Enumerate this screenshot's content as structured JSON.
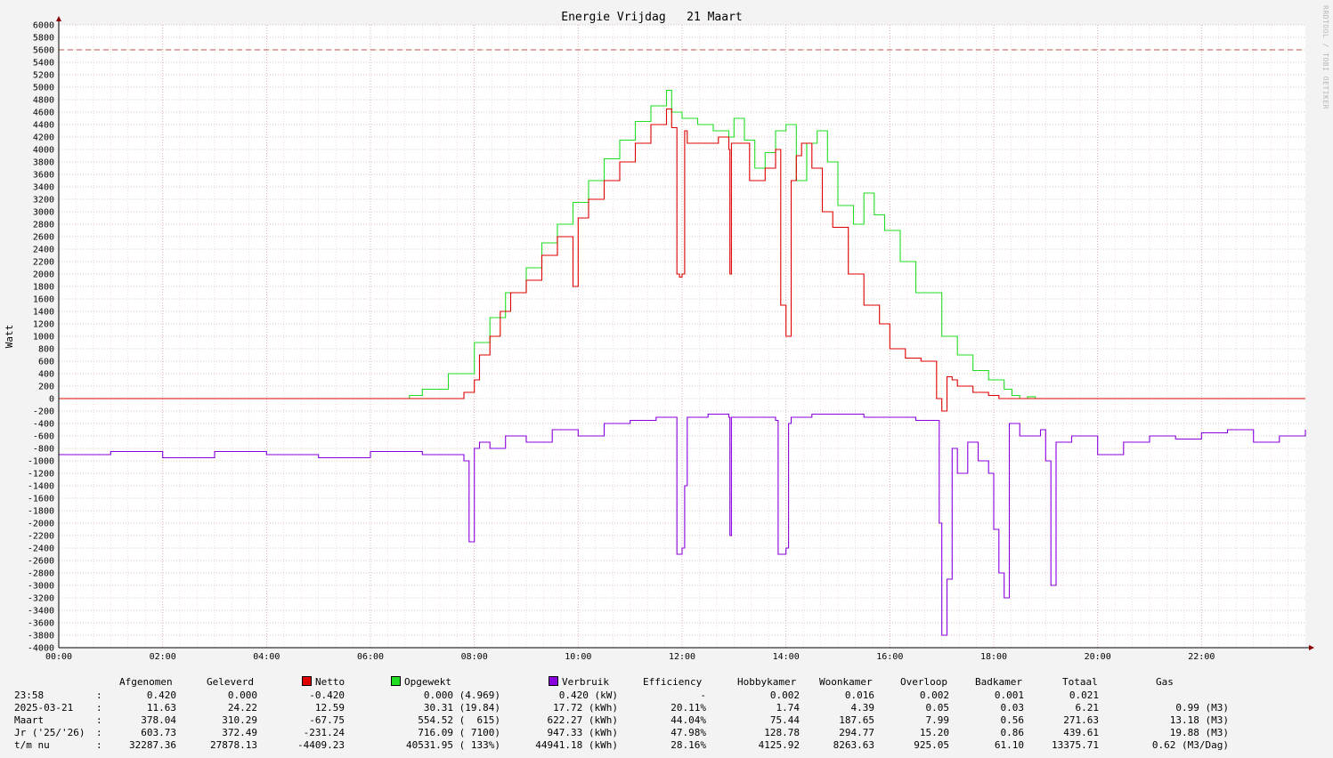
{
  "chart_data": {
    "type": "line",
    "title": "Energie Vrijdag   21 Maart",
    "ylabel": "Watt",
    "xlabel": "",
    "ylim": [
      -4000,
      6000
    ],
    "xlim_hours": [
      0,
      24
    ],
    "grid": true,
    "yticks": [
      "6000",
      "5800",
      "5600",
      "5400",
      "5200",
      "5000",
      "4800",
      "4600",
      "4400",
      "4200",
      "4000",
      "3800",
      "3600",
      "3400",
      "3200",
      "3000",
      "2800",
      "2600",
      "2400",
      "2200",
      "2000",
      "1800",
      "1600",
      "1400",
      "1200",
      "1000",
      "800",
      "600",
      "400",
      "200",
      "0",
      "-200",
      "-400",
      "-600",
      "-800",
      "-1000",
      "-1200",
      "-1400",
      "-1600",
      "-1800",
      "-2000",
      "-2200",
      "-2400",
      "-2600",
      "-2800",
      "-3000",
      "-3200",
      "-3400",
      "-3600",
      "-3800",
      "-4000"
    ],
    "xticks": [
      "00:00",
      "02:00",
      "04:00",
      "06:00",
      "08:00",
      "10:00",
      "12:00",
      "14:00",
      "16:00",
      "18:00",
      "20:00",
      "22:00"
    ],
    "limit_line": 5600,
    "series": [
      {
        "name": "Opgewekt",
        "color": "#22dd22",
        "x": [
          0,
          6.75,
          7.0,
          7.5,
          8.0,
          8.3,
          8.6,
          9.0,
          9.3,
          9.6,
          9.9,
          10.2,
          10.5,
          10.8,
          11.1,
          11.4,
          11.7,
          11.8,
          12.0,
          12.3,
          12.6,
          12.9,
          13.0,
          13.2,
          13.4,
          13.6,
          13.8,
          14.0,
          14.2,
          14.4,
          14.6,
          14.8,
          15.0,
          15.3,
          15.5,
          15.7,
          15.9,
          16.2,
          16.5,
          17.0,
          17.3,
          17.6,
          17.9,
          18.2,
          18.35,
          18.5,
          18.65,
          18.8,
          24
        ],
        "y": [
          0,
          50,
          150,
          400,
          900,
          1300,
          1700,
          2100,
          2500,
          2800,
          3150,
          3500,
          3850,
          4150,
          4450,
          4700,
          4950,
          4600,
          4500,
          4400,
          4300,
          4200,
          4500,
          4150,
          3700,
          3950,
          4300,
          4400,
          3500,
          4100,
          4300,
          3800,
          3100,
          2800,
          3300,
          2950,
          2700,
          2200,
          1700,
          1000,
          700,
          450,
          300,
          150,
          50,
          0,
          30,
          0,
          0
        ]
      },
      {
        "name": "Netto",
        "color": "#dd0000",
        "x": [
          0,
          7.5,
          7.8,
          8.0,
          8.1,
          8.3,
          8.5,
          8.7,
          9.0,
          9.3,
          9.6,
          9.9,
          10.0,
          10.2,
          10.5,
          10.8,
          11.1,
          11.4,
          11.7,
          11.8,
          11.85,
          11.9,
          11.95,
          12.0,
          12.05,
          12.1,
          12.4,
          12.7,
          12.9,
          12.92,
          12.95,
          13.0,
          13.3,
          13.6,
          13.8,
          13.9,
          14.0,
          14.1,
          14.2,
          14.3,
          14.5,
          14.7,
          14.9,
          15.2,
          15.5,
          15.8,
          16.0,
          16.3,
          16.6,
          16.9,
          17.0,
          17.1,
          17.2,
          17.3,
          17.6,
          17.9,
          18.1,
          18.3,
          24
        ],
        "y": [
          0,
          0,
          100,
          300,
          700,
          1000,
          1400,
          1700,
          1900,
          2300,
          2600,
          1800,
          2900,
          3200,
          3500,
          3800,
          4100,
          4400,
          4650,
          4350,
          4350,
          2000,
          1950,
          2000,
          4300,
          4100,
          4100,
          4200,
          4000,
          2000,
          4100,
          4100,
          3500,
          3700,
          4000,
          1500,
          1000,
          3500,
          3900,
          4100,
          3700,
          3000,
          2750,
          2000,
          1500,
          1200,
          800,
          650,
          600,
          0,
          -200,
          350,
          300,
          200,
          100,
          50,
          0,
          0,
          0
        ]
      },
      {
        "name": "Verbruik",
        "color": "#8800dd",
        "x": [
          0,
          1,
          2,
          3,
          4,
          5,
          6,
          7,
          7.8,
          7.9,
          8.0,
          8.1,
          8.3,
          8.6,
          9.0,
          9.5,
          10.0,
          10.5,
          11.0,
          11.5,
          11.8,
          11.9,
          12.0,
          12.05,
          12.1,
          12.5,
          12.9,
          12.92,
          12.95,
          13.0,
          13.5,
          13.8,
          13.85,
          14.0,
          14.05,
          14.1,
          14.5,
          15.0,
          15.5,
          16.0,
          16.5,
          16.9,
          16.95,
          17.0,
          17.1,
          17.2,
          17.3,
          17.5,
          17.7,
          17.9,
          18.0,
          18.1,
          18.2,
          18.3,
          18.5,
          18.9,
          19.0,
          19.1,
          19.2,
          19.5,
          20.0,
          20.5,
          21.0,
          21.5,
          22.0,
          22.5,
          23.0,
          23.5,
          24
        ],
        "y": [
          -900,
          -850,
          -950,
          -850,
          -900,
          -950,
          -850,
          -900,
          -1000,
          -2300,
          -800,
          -700,
          -800,
          -600,
          -700,
          -500,
          -600,
          -400,
          -350,
          -300,
          -300,
          -2500,
          -2400,
          -1400,
          -300,
          -250,
          -300,
          -2200,
          -300,
          -300,
          -300,
          -350,
          -2500,
          -2400,
          -400,
          -300,
          -250,
          -250,
          -300,
          -300,
          -350,
          -350,
          -2000,
          -3800,
          -2900,
          -800,
          -1200,
          -700,
          -1000,
          -1200,
          -2100,
          -2800,
          -3200,
          -400,
          -600,
          -500,
          -1000,
          -3000,
          -700,
          -600,
          -900,
          -700,
          -600,
          -650,
          -550,
          -500,
          -700,
          -600,
          -500
        ]
      }
    ]
  },
  "legend": {
    "headers": {
      "afgenomen": "Afgenomen",
      "geleverd": "Geleverd",
      "netto": "Netto",
      "opgewekt": "Opgewekt",
      "verbruik": "Verbruik",
      "efficiency": "Efficiency",
      "hobbykamer": "Hobbykamer",
      "woonkamer": "Woonkamer",
      "overloop": "Overloop",
      "badkamer": "Badkamer",
      "totaal": "Totaal",
      "gas": "Gas"
    },
    "colors": {
      "netto": "#dd0000",
      "opgewekt": "#22dd22",
      "verbruik": "#8800dd"
    },
    "rows": [
      {
        "label": "23:58",
        "sep": ":",
        "afgenomen": "0.420",
        "geleverd": "0.000",
        "netto": "-0.420",
        "opgewekt": "0.000 (4.969)",
        "verbruik": "0.420 (kW)",
        "efficiency": "-",
        "hobbykamer": "0.002",
        "woonkamer": "0.016",
        "overloop": "0.002",
        "badkamer": "0.001",
        "totaal": "0.021",
        "gas": ""
      },
      {
        "label": "2025-03-21",
        "sep": ":",
        "afgenomen": "11.63",
        "geleverd": "24.22",
        "netto": "12.59",
        "opgewekt": "30.31 (19.84)",
        "verbruik": "17.72 (kWh)",
        "efficiency": "20.11%",
        "hobbykamer": "1.74",
        "woonkamer": "4.39",
        "overloop": "0.05",
        "badkamer": "0.03",
        "totaal": "6.21",
        "gas": "0.99 (M3)"
      },
      {
        "label": "Maart",
        "sep": ":",
        "afgenomen": "378.04",
        "geleverd": "310.29",
        "netto": "-67.75",
        "opgewekt": "554.52 (  615)",
        "verbruik": "622.27 (kWh)",
        "efficiency": "44.04%",
        "hobbykamer": "75.44",
        "woonkamer": "187.65",
        "overloop": "7.99",
        "badkamer": "0.56",
        "totaal": "271.63",
        "gas": "13.18 (M3)"
      },
      {
        "label": "Jr ('25/'26)",
        "sep": ":",
        "afgenomen": "603.73",
        "geleverd": "372.49",
        "netto": "-231.24",
        "opgewekt": "716.09 ( 7100)",
        "verbruik": "947.33 (kWh)",
        "efficiency": "47.98%",
        "hobbykamer": "128.78",
        "woonkamer": "294.77",
        "overloop": "15.20",
        "badkamer": "0.86",
        "totaal": "439.61",
        "gas": "19.88 (M3)"
      },
      {
        "label": "t/m nu",
        "sep": ":",
        "afgenomen": "32287.36",
        "geleverd": "27878.13",
        "netto": "-4409.23",
        "opgewekt": "40531.95 ( 133%)",
        "verbruik": "44941.18 (kWh)",
        "efficiency": "28.16%",
        "hobbykamer": "4125.92",
        "woonkamer": "8263.63",
        "overloop": "925.05",
        "badkamer": "61.10",
        "totaal": "13375.71",
        "gas": "0.62 (M3/Dag)"
      }
    ]
  },
  "watermark": "RRDTOOL / TOBI OETIKER"
}
